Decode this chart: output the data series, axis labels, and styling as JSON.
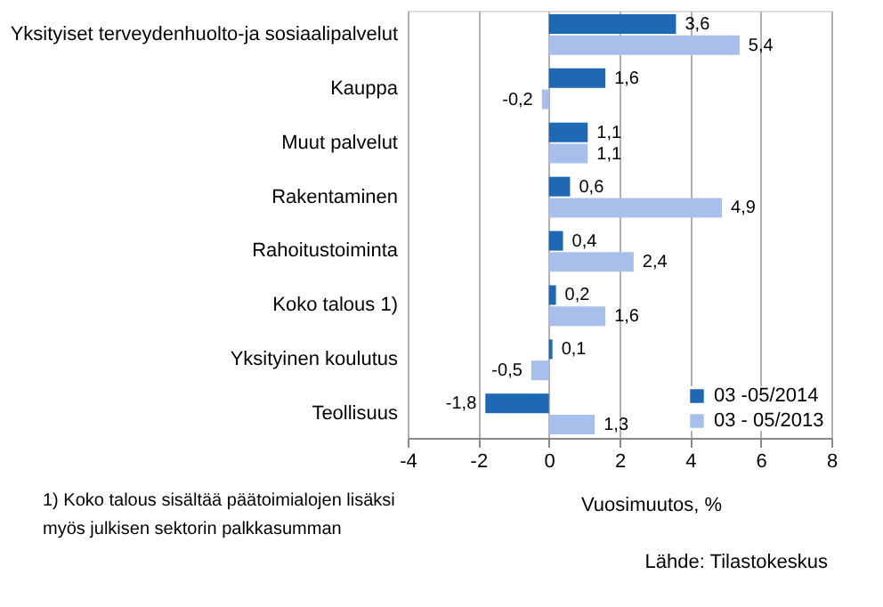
{
  "chart_data": {
    "type": "bar",
    "orientation": "horizontal",
    "categories": [
      "Yksityiset terveydenhuolto-ja sosiaalipalvelut",
      "Kauppa",
      "Muut palvelut",
      "Rakentaminen",
      "Rahoitustoiminta",
      "Koko talous 1)",
      "Yksityinen koulutus",
      "Teollisuus"
    ],
    "series": [
      {
        "name": "03 -05/2014",
        "color": "#1f69b4",
        "values": [
          3.6,
          1.6,
          1.1,
          0.6,
          0.4,
          0.2,
          0.1,
          -1.8
        ],
        "value_labels": [
          "3,6",
          "1,6",
          "1,1",
          "0,6",
          "0,4",
          "0,2",
          "0,1",
          "-1,8"
        ]
      },
      {
        "name": "03 - 05/2013",
        "color": "#a9bfeb",
        "values": [
          5.4,
          -0.2,
          1.1,
          4.9,
          2.4,
          1.6,
          -0.5,
          1.3
        ],
        "value_labels": [
          "5,4",
          "-0,2",
          "1,1",
          "4,9",
          "2,4",
          "1,6",
          "-0,5",
          "1,3"
        ]
      }
    ],
    "xlim": [
      -4,
      8
    ],
    "xticks": [
      -4,
      -2,
      0,
      2,
      4,
      6,
      8
    ],
    "xlabel": "Vuosimuutos, %",
    "grid": "x",
    "legend": "bottom right",
    "annotations": [
      "1) Koko talous sisältää päätoimialojen lisäksi myös julkisen sektorin palkkasumman",
      "Lähde: Tilastokeskus"
    ]
  }
}
